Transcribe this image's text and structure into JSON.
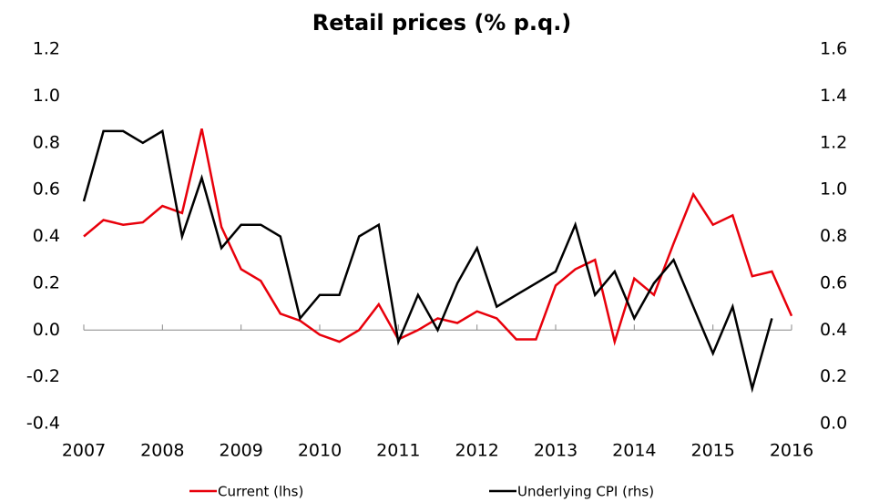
{
  "chart_data": {
    "type": "line",
    "title": "Retail prices (% p.q.)",
    "x": [
      2007,
      2007.25,
      2007.5,
      2007.75,
      2008,
      2008.25,
      2008.5,
      2008.75,
      2009,
      2009.25,
      2009.5,
      2009.75,
      2010,
      2010.25,
      2010.5,
      2010.75,
      2011,
      2011.25,
      2011.5,
      2011.75,
      2012,
      2012.25,
      2012.5,
      2012.75,
      2013,
      2013.25,
      2013.5,
      2013.75,
      2014,
      2014.25,
      2014.5,
      2014.75,
      2015,
      2015.25,
      2015.5,
      2015.75,
      2016
    ],
    "xlim": [
      2007,
      2016
    ],
    "xticks": [
      2007,
      2008,
      2009,
      2010,
      2011,
      2012,
      2013,
      2014,
      2015,
      2016
    ],
    "ylim": [
      -0.4,
      1.2
    ],
    "yticks": [
      -0.4,
      -0.2,
      {
        "value": 0,
        "label": "0.0"
      },
      0.2,
      0.4,
      0.6,
      0.8,
      {
        "value": 1,
        "label": "1.0"
      },
      1.2
    ],
    "y2lim": [
      0,
      1.6
    ],
    "y2ticks": [
      {
        "value": 0,
        "label": "0.0"
      },
      0.2,
      0.4,
      0.6,
      0.8,
      {
        "value": 1,
        "label": "1.0"
      },
      1.2,
      1.4,
      1.6
    ],
    "series": [
      {
        "name": "Current (lhs)",
        "color": "#e8000b",
        "values": [
          0.4,
          0.47,
          0.45,
          0.46,
          0.53,
          0.5,
          0.86,
          0.44,
          0.26,
          0.21,
          0.07,
          0.04,
          -0.02,
          -0.05,
          0.0,
          0.11,
          -0.04,
          0.0,
          0.05,
          0.03,
          0.08,
          0.05,
          -0.04,
          -0.04,
          0.19,
          0.26,
          0.3,
          -0.05,
          0.22,
          0.15,
          0.37,
          0.58,
          0.45,
          0.49,
          0.23,
          0.25,
          0.06
        ]
      },
      {
        "name": "Underlying CPI (rhs)",
        "color": "#000000",
        "axis": "y2",
        "values": [
          0.95,
          1.25,
          1.25,
          1.2,
          1.25,
          0.8,
          1.05,
          0.75,
          0.85,
          0.85,
          0.8,
          0.45,
          0.55,
          0.55,
          0.8,
          0.85,
          0.35,
          0.55,
          0.4,
          0.6,
          0.75,
          0.5,
          0.55,
          0.6,
          0.65,
          0.85,
          0.55,
          0.65,
          0.45,
          0.6,
          0.7,
          0.5,
          0.3,
          0.5,
          0.15,
          0.45,
          null
        ]
      }
    ]
  }
}
